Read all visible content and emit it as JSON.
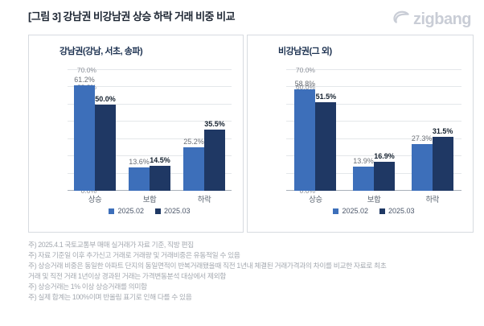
{
  "header": {
    "title": "[그림 3] 강남권 비강남권 상승 하락 거래 비중 비교",
    "logo_text": "zigbang"
  },
  "colors": {
    "series1": "#3d6fba",
    "series2": "#1f3864"
  },
  "chart_data": [
    {
      "type": "bar",
      "title": "강남권(강남, 서초, 송파)",
      "categories": [
        "상승",
        "보합",
        "하락"
      ],
      "series": [
        {
          "name": "2025.02",
          "values": [
            61.2,
            13.6,
            25.2
          ]
        },
        {
          "name": "2025.03",
          "values": [
            50.0,
            14.5,
            35.5
          ]
        }
      ],
      "ylabel": "",
      "xlabel": "",
      "ylim": [
        0,
        70
      ],
      "ytick_step": 10,
      "grid": true,
      "legend_position": "bottom",
      "value_label_suffix": "%"
    },
    {
      "type": "bar",
      "title": "비강남권(그 외)",
      "categories": [
        "상승",
        "보합",
        "하락"
      ],
      "series": [
        {
          "name": "2025.02",
          "values": [
            58.8,
            13.9,
            27.3
          ]
        },
        {
          "name": "2025.03",
          "values": [
            51.5,
            16.9,
            31.5
          ]
        }
      ],
      "ylabel": "",
      "xlabel": "",
      "ylim": [
        0,
        70
      ],
      "ytick_step": 10,
      "grid": true,
      "legend_position": "bottom",
      "value_label_suffix": "%"
    }
  ],
  "footnotes": [
    "주) 2025.4.1 국토교통부 매매 실거래가 자료 기준, 직방 편집",
    "주) 자료 기준일 이후 추가신고 거래로 거래량 및 거래비중은 유동적일 수 있음",
    "주) 상승거래 비중은 동일한 아파트 단지의 동일면적이 반복거래됐을때 직전 1년내 체결된 거래가격과의 차이를 비교한 자료로 최초",
    "거래 및 직전 거래 1년이상 경과된 거래는 가격변동분석 대상에서 제외함",
    "주) 상승거래는 1% 이상 상승거래를 의미함",
    "주) 실제 합계는 100%이며 반올림 표기로 인해 다를 수 있음"
  ]
}
